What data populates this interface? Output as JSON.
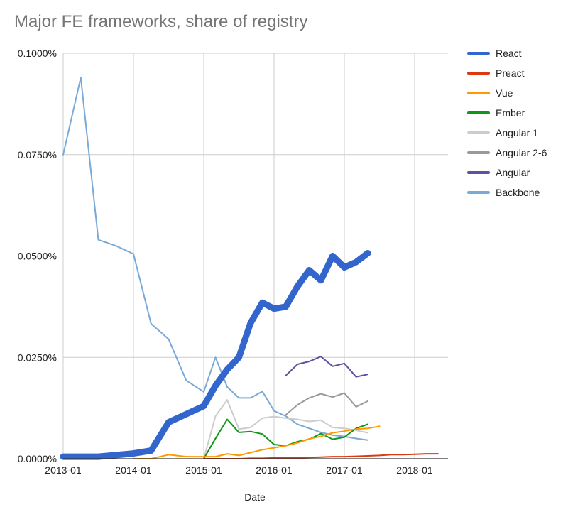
{
  "chart_data": {
    "type": "line",
    "title": "Major FE frameworks, share of registry",
    "xlabel": "Date",
    "ylabel": "",
    "y_unit": "%",
    "ylim": [
      0,
      0.1
    ],
    "y_ticks": [
      0.0,
      0.025,
      0.05,
      0.075,
      0.1
    ],
    "y_tick_labels": [
      "0.0000%",
      "0.0250%",
      "0.0500%",
      "0.0750%",
      "0.1000%"
    ],
    "x_tick_labels": [
      "2013-01",
      "2014-01",
      "2015-01",
      "2016-01",
      "2017-01",
      "2018-01"
    ],
    "xlim": [
      "2013-01",
      "2018-06"
    ],
    "grid": true,
    "legend_position": "right",
    "x": [
      "2013-01",
      "2013-04",
      "2013-07",
      "2013-10",
      "2014-01",
      "2014-04",
      "2014-07",
      "2014-10",
      "2015-01",
      "2015-03",
      "2015-05",
      "2015-07",
      "2015-09",
      "2015-11",
      "2016-01",
      "2016-03",
      "2016-05",
      "2016-07",
      "2016-09",
      "2016-11",
      "2017-01",
      "2017-03",
      "2017-05",
      "2017-07",
      "2017-09",
      "2017-11",
      "2018-01",
      "2018-03",
      "2018-05"
    ],
    "series": [
      {
        "name": "React",
        "color": "#3366cc",
        "width": 9,
        "values": [
          0.0005,
          0.0005,
          0.0005,
          0.0009,
          0.0013,
          0.002,
          0.009,
          0.011,
          0.013,
          0.018,
          0.022,
          0.025,
          0.0335,
          0.0385,
          0.037,
          0.0375,
          0.0425,
          0.0465,
          0.044,
          0.05,
          0.0472,
          0.0485,
          0.0507,
          null,
          null,
          null,
          null,
          null,
          null
        ]
      },
      {
        "name": "Preact",
        "color": "#dc3912",
        "width": 2,
        "values": [
          null,
          null,
          null,
          null,
          null,
          null,
          null,
          null,
          0.0,
          0.0,
          0.0,
          0.0,
          0.0001,
          0.0001,
          0.0002,
          0.0002,
          0.0002,
          0.0003,
          0.0004,
          0.0005,
          0.0005,
          0.0006,
          0.0007,
          0.0008,
          0.001,
          0.001,
          0.0011,
          0.0012,
          0.0012
        ]
      },
      {
        "name": "Vue",
        "color": "#ff9900",
        "width": 2,
        "values": [
          null,
          null,
          null,
          null,
          0.0,
          0.0,
          0.001,
          0.0005,
          0.0005,
          0.0005,
          0.0012,
          0.0008,
          0.0015,
          0.0022,
          0.0027,
          0.0032,
          0.0039,
          0.0049,
          0.0055,
          0.0064,
          0.0068,
          0.0073,
          0.0075,
          0.008,
          null,
          null,
          null,
          null,
          null
        ]
      },
      {
        "name": "Ember",
        "color": "#109618",
        "width": 2,
        "values": [
          null,
          null,
          null,
          null,
          null,
          null,
          null,
          null,
          0.0,
          0.005,
          0.0097,
          0.0065,
          0.0067,
          0.0061,
          0.0035,
          0.0032,
          0.0042,
          0.0048,
          0.0062,
          0.0048,
          0.0053,
          0.0075,
          0.0085,
          null,
          null,
          null,
          null,
          null,
          null
        ]
      },
      {
        "name": "Angular 1",
        "color": "#cccccc",
        "width": 2,
        "values": [
          null,
          null,
          null,
          null,
          null,
          null,
          null,
          null,
          0.0,
          0.0105,
          0.0145,
          0.0073,
          0.0077,
          0.01,
          0.0104,
          0.01,
          0.0097,
          0.0092,
          0.0095,
          0.0077,
          0.0075,
          0.007,
          0.0064,
          null,
          null,
          null,
          null,
          null,
          null
        ]
      },
      {
        "name": "Angular 2-6",
        "color": "#999999",
        "width": 2,
        "values": [
          null,
          null,
          null,
          null,
          null,
          null,
          null,
          null,
          null,
          null,
          null,
          null,
          null,
          null,
          null,
          0.0108,
          0.0133,
          0.015,
          0.016,
          0.0152,
          0.0162,
          0.0128,
          0.0142,
          null,
          null,
          null,
          null,
          null,
          null
        ]
      },
      {
        "name": "Angular",
        "color": "#5e4fa2",
        "width": 2,
        "values": [
          null,
          null,
          null,
          null,
          null,
          null,
          null,
          null,
          null,
          null,
          null,
          null,
          null,
          null,
          null,
          0.0205,
          0.0233,
          0.024,
          0.0252,
          0.0228,
          0.0235,
          0.0202,
          0.0208,
          null,
          null,
          null,
          null,
          null,
          null
        ]
      },
      {
        "name": "Backbone",
        "color": "#79a9d6",
        "width": 2,
        "values": [
          0.075,
          0.094,
          0.054,
          0.0525,
          0.0505,
          0.0333,
          0.0295,
          0.0193,
          0.0165,
          0.025,
          0.0177,
          0.015,
          0.015,
          0.0166,
          0.0118,
          0.0105,
          0.0085,
          0.0075,
          0.0065,
          0.0058,
          0.0055,
          0.005,
          0.0046,
          null,
          null,
          null,
          null,
          null,
          null
        ]
      }
    ]
  }
}
